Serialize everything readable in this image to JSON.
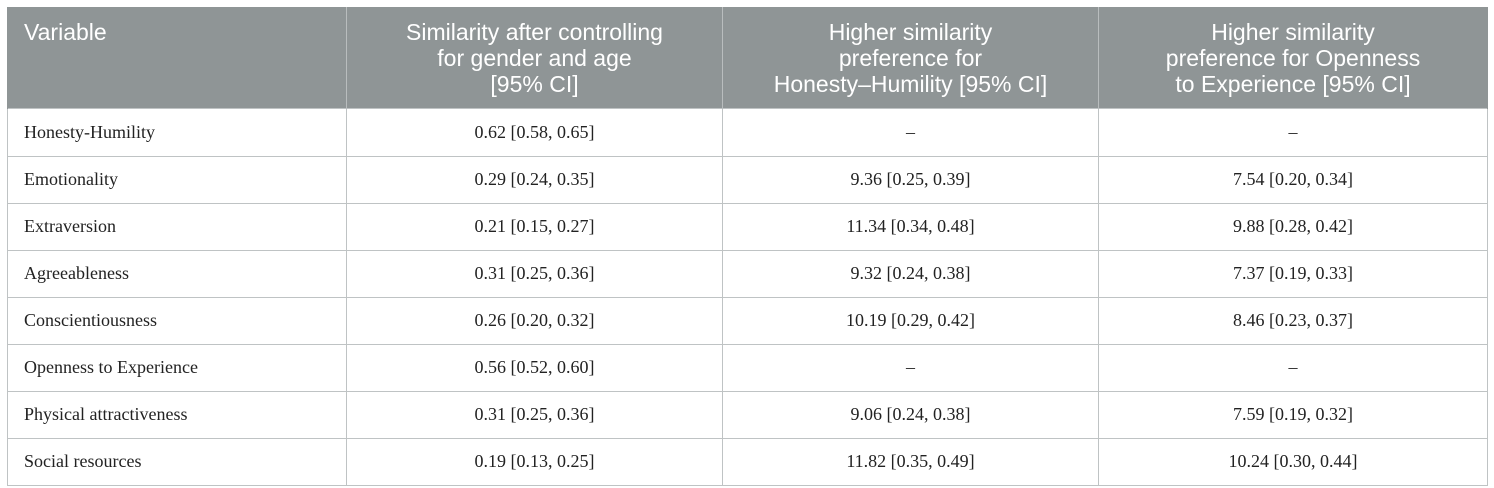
{
  "table": {
    "headers": [
      "Variable",
      "Similarity after controlling for gender and age [95% CI]",
      "Higher similarity preference for Honesty–Humility [95% CI]",
      "Higher similarity preference for Openness to Experience [95% CI]"
    ],
    "header_lines": [
      [
        "Variable"
      ],
      [
        "Similarity after controlling",
        "for gender and age",
        "[95% CI]"
      ],
      [
        "Higher similarity",
        "preference for",
        "Honesty–Humility [95% CI]"
      ],
      [
        "Higher similarity",
        "preference for Openness",
        "to Experience [95% CI]"
      ]
    ],
    "rows": [
      {
        "variable": "Honesty-Humility",
        "similarity": "0.62 [0.58, 0.65]",
        "honesty_pref": "–",
        "openness_pref": "–"
      },
      {
        "variable": "Emotionality",
        "similarity": "0.29 [0.24, 0.35]",
        "honesty_pref": "9.36 [0.25, 0.39]",
        "openness_pref": "7.54 [0.20, 0.34]"
      },
      {
        "variable": "Extraversion",
        "similarity": "0.21 [0.15, 0.27]",
        "honesty_pref": "11.34 [0.34, 0.48]",
        "openness_pref": "9.88 [0.28, 0.42]"
      },
      {
        "variable": "Agreeableness",
        "similarity": "0.31 [0.25, 0.36]",
        "honesty_pref": "9.32 [0.24, 0.38]",
        "openness_pref": "7.37 [0.19, 0.33]"
      },
      {
        "variable": "Conscientiousness",
        "similarity": "0.26 [0.20, 0.32]",
        "honesty_pref": "10.19 [0.29, 0.42]",
        "openness_pref": "8.46 [0.23, 0.37]"
      },
      {
        "variable": "Openness to Experience",
        "similarity": "0.56 [0.52, 0.60]",
        "honesty_pref": "–",
        "openness_pref": "–"
      },
      {
        "variable": "Physical attractiveness",
        "similarity": "0.31 [0.25, 0.36]",
        "honesty_pref": "9.06 [0.24, 0.38]",
        "openness_pref": "7.59 [0.19, 0.32]"
      },
      {
        "variable": "Social resources",
        "similarity": "0.19 [0.13, 0.25]",
        "honesty_pref": "11.82 [0.35, 0.49]",
        "openness_pref": "10.24 [0.30, 0.44]"
      }
    ]
  },
  "colors": {
    "header_bg": "#8f9596",
    "header_text": "#ffffff",
    "grid": "#bfc3c4",
    "body_text": "#222222"
  }
}
